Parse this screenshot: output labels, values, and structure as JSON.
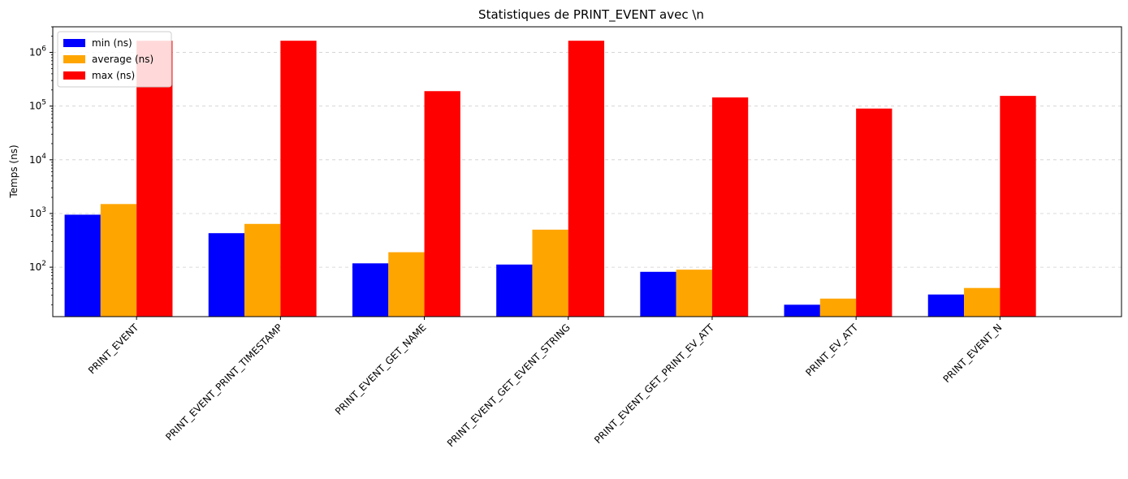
{
  "chart_data": {
    "type": "bar",
    "title": "Statistiques de PRINT_EVENT avec \\n",
    "xlabel": "",
    "ylabel": "Temps (ns)",
    "yscale": "log",
    "ylim": [
      12,
      3000000
    ],
    "grid": "y-dashed",
    "legend_position": "top-left",
    "categories": [
      "PRINT_EVENT",
      "PRINT_EVENT_PRINT_TIMESTAMP",
      "PRINT_EVENT_GET_NAME",
      "PRINT_EVENT_GET_EVENT_STRING",
      "PRINT_EVENT_GET_PRINT_EV_ATT",
      "PRINT_EV_ATT",
      "PRINT_EVENT_N"
    ],
    "series": [
      {
        "name": "min (ns)",
        "color": "#0000ff",
        "values": [
          950,
          430,
          118,
          112,
          82,
          20,
          31
        ]
      },
      {
        "name": "average (ns)",
        "color": "#ffa500",
        "values": [
          1500,
          640,
          190,
          500,
          90,
          26,
          41
        ]
      },
      {
        "name": "max (ns)",
        "color": "#ff0000",
        "values": [
          1650000,
          1650000,
          190000,
          1650000,
          145000,
          90000,
          155000
        ]
      }
    ],
    "yticks": [
      {
        "value": 100,
        "base": "10",
        "exp": "2"
      },
      {
        "value": 1000,
        "base": "10",
        "exp": "3"
      },
      {
        "value": 10000,
        "base": "10",
        "exp": "4"
      },
      {
        "value": 100000,
        "base": "10",
        "exp": "5"
      },
      {
        "value": 1000000,
        "base": "10",
        "exp": "6"
      }
    ]
  }
}
